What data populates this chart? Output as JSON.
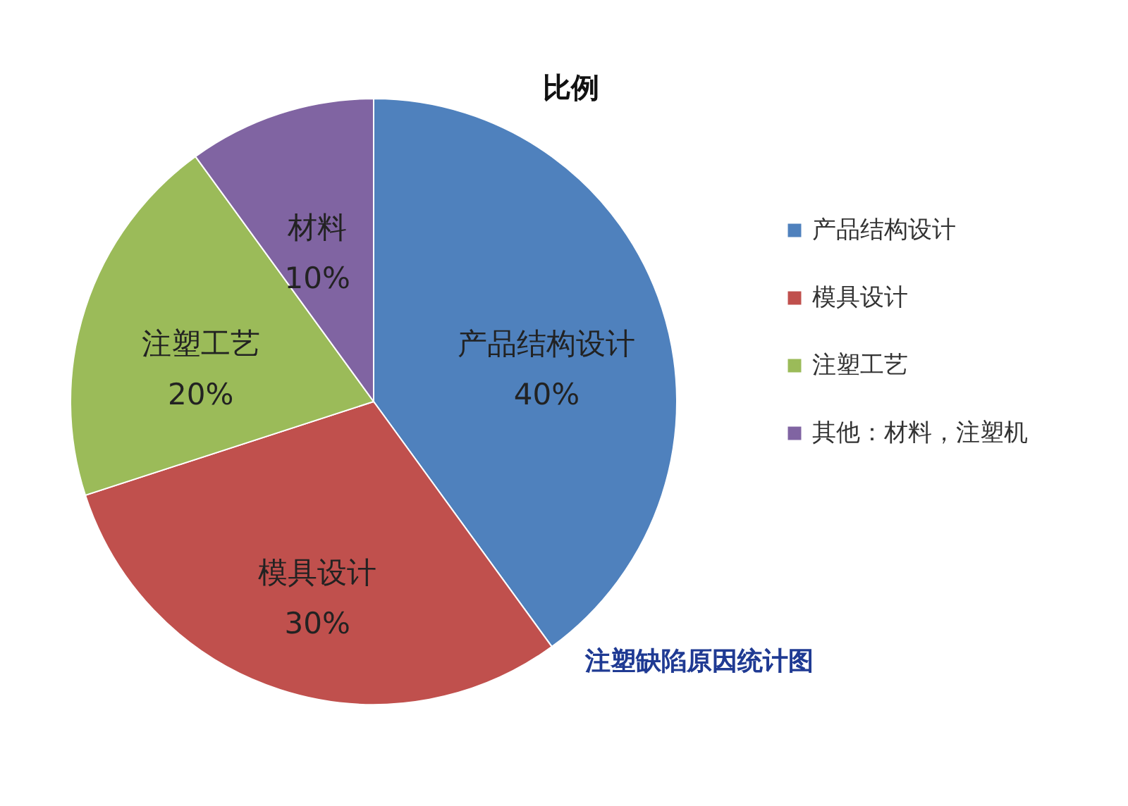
{
  "chart_data": {
    "type": "pie",
    "title": "比例",
    "categories": [
      "产品结构设计",
      "模具设计",
      "注塑工艺",
      "其他：材料，注塑机"
    ],
    "values": [
      40,
      30,
      20,
      10
    ],
    "colors": [
      "#4f81bd",
      "#c0504d",
      "#9bbb59",
      "#8064a2"
    ],
    "value_labels": [
      "产品结构设计 40%",
      "模具设计 30%",
      "注塑工艺 20%",
      "材料 10%"
    ],
    "legend": "right",
    "annotations": [
      "注塑缺陷原因统计图"
    ]
  }
}
